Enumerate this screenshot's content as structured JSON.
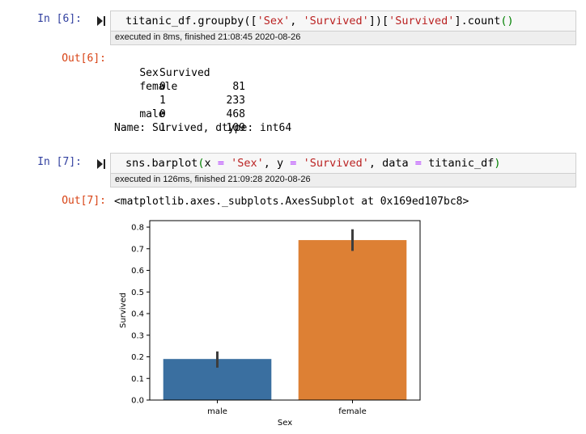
{
  "cells": [
    {
      "in_prompt": "In [6]:",
      "code": {
        "obj": "titanic_df",
        "method": ".groupby",
        "arg_list": [
          "'Sex'",
          "'Survived'"
        ],
        "index_key": "'Survived'",
        "tail": ".count"
      },
      "exec_info": "executed in 8ms, finished 21:08:45 2020-08-26",
      "out_prompt": "Out[6]:",
      "output": {
        "header": {
          "col1": "Sex",
          "col2": "Survived"
        },
        "rows": [
          {
            "group": "female",
            "level": "0",
            "count": "81"
          },
          {
            "group": "",
            "level": "1",
            "count": "233"
          },
          {
            "group": "male",
            "level": "0",
            "count": "468"
          },
          {
            "group": "",
            "level": "1",
            "count": "109"
          }
        ],
        "footer": "Name: Survived, dtype: int64"
      }
    },
    {
      "in_prompt": "In [7]:",
      "code": {
        "func": "sns.barplot",
        "p1_name": "x",
        "p1_val": "'Sex'",
        "p2_name": "y",
        "p2_val": "'Survived'",
        "p3_name": "data",
        "p3_val": "titanic_df"
      },
      "exec_info": "executed in 126ms, finished 21:09:28 2020-08-26",
      "out_prompt": "Out[7]:",
      "output_text": "<matplotlib.axes._subplots.AxesSubplot at 0x169ed107bc8>"
    }
  ],
  "chart_data": {
    "type": "bar",
    "categories": [
      "male",
      "female"
    ],
    "values": [
      0.19,
      0.74
    ],
    "error_bars": [
      [
        0.15,
        0.225
      ],
      [
        0.69,
        0.79
      ]
    ],
    "colors": [
      "#3a6fa0",
      "#dd8034"
    ],
    "xlabel": "Sex",
    "ylabel": "Survived",
    "ylim": [
      0,
      0.83
    ],
    "yticks": [
      "0.0",
      "0.1",
      "0.2",
      "0.3",
      "0.4",
      "0.5",
      "0.6",
      "0.7",
      "0.8"
    ],
    "grid": false
  }
}
